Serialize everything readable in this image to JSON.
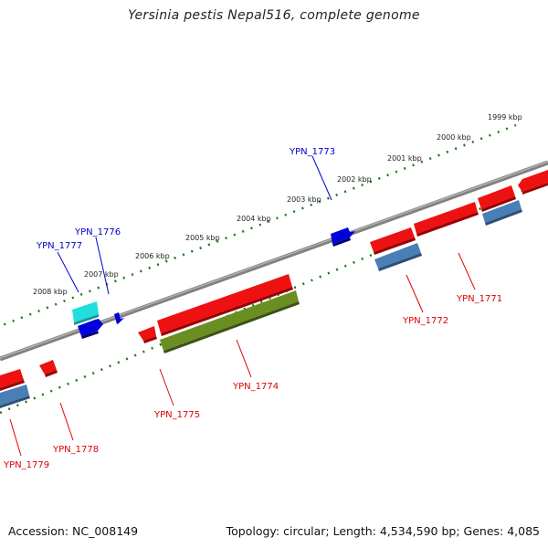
{
  "title": "Yersinia pestis Nepal516, complete genome",
  "footer": {
    "accession": "Accession: NC_008149",
    "summary": "Topology: circular; Length: 4,534,590 bp; Genes: 4,085"
  },
  "ticks": [
    "1999 kbp",
    "2000 kbp",
    "2001 kbp",
    "2002 kbp",
    "2003 kbp",
    "2004 kbp",
    "2005 kbp",
    "2006 kbp",
    "2007 kbp",
    "2008 kbp"
  ],
  "genes": {
    "forward": [
      "YPN_1773",
      "YPN_1776",
      "YPN_1777"
    ],
    "reverse": [
      "YPN_1771",
      "YPN_1772",
      "YPN_1774",
      "YPN_1775",
      "YPN_1778",
      "YPN_1779"
    ]
  },
  "colors": {
    "forward_label": "#0000cc",
    "reverse_label": "#dd0000",
    "cds_red": "#ee1111",
    "cds_blue": "#0000dd",
    "cds_cyan": "#22dddd",
    "cds_steelblue": "#4a7fb5",
    "cds_olive": "#6b8e23",
    "backbone": "#808080",
    "tick_green": "#1a7a1a"
  }
}
